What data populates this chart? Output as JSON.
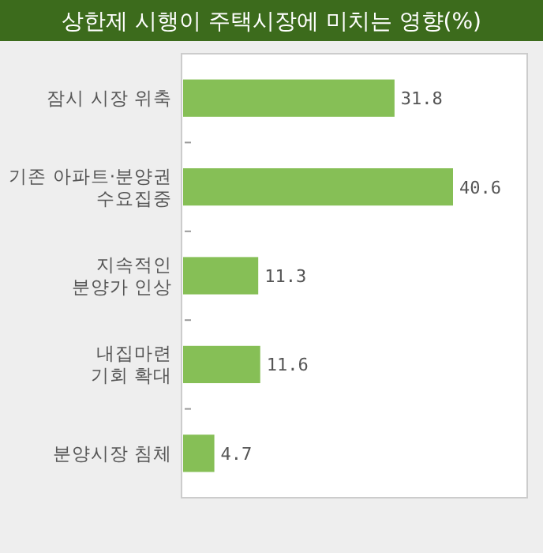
{
  "chart_data": {
    "type": "bar",
    "orientation": "horizontal",
    "title": "상한제 시행이 주택시장에 미치는 영향(%)",
    "categories": [
      "잠시 시장 위축",
      "기존 아파트·분양권\n수요집중",
      "지속적인\n분양가 인상",
      "내집마련\n기회 확대",
      "분양시장 침체"
    ],
    "values": [
      31.8,
      40.6,
      11.3,
      11.6,
      4.7
    ],
    "color": "#86bf56",
    "data_labels": true
  }
}
